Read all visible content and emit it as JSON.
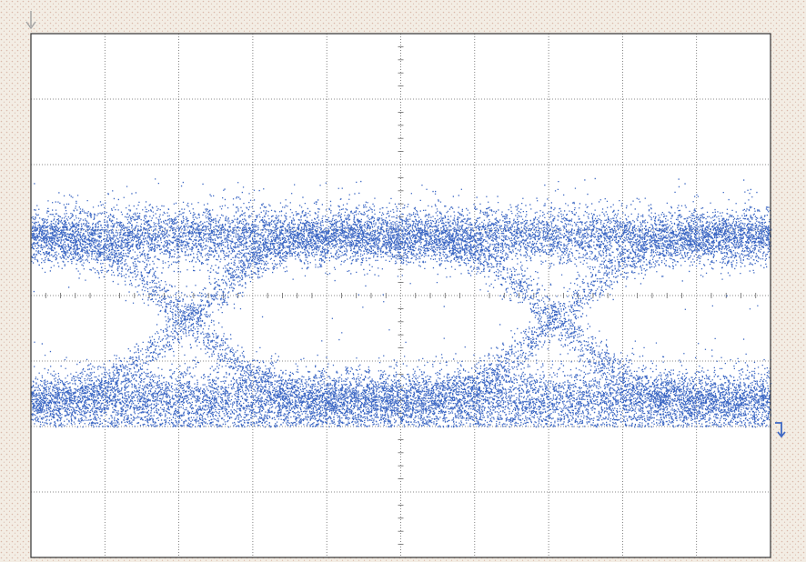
{
  "screen": {
    "background_color": "#f3ede4",
    "texture_color": "#d9b9aa",
    "plot_background": "#ffffff",
    "frame_color": "#333333",
    "grid_color": "#666666",
    "trace_color": "#3d68c4",
    "marker_color": "#3d68c4",
    "trigger_marker_color": "#a5a5a5"
  },
  "markers": {
    "trigger_icon": "down-arrow-icon",
    "level_icon": "level-step-arrow-icon"
  },
  "chart_data": {
    "type": "scatter",
    "kind": "eye-diagram",
    "title": "",
    "xlabel": "",
    "ylabel": "",
    "grid": true,
    "x_divisions": 10,
    "y_divisions": 8,
    "minor_ticks_per_division": 5,
    "xlim": [
      0,
      10
    ],
    "ylim": [
      -4,
      4
    ],
    "unit_interval_divisions": 5,
    "first_crossing_x": 2.1,
    "high_level": 0.9,
    "low_level": -1.6,
    "level_spread": 0.22,
    "transition_spread": 0.16,
    "outlier_top": 1.8,
    "outlier_bottom": -2.0,
    "level_marker_y": -2.0,
    "point_count": 26000
  }
}
